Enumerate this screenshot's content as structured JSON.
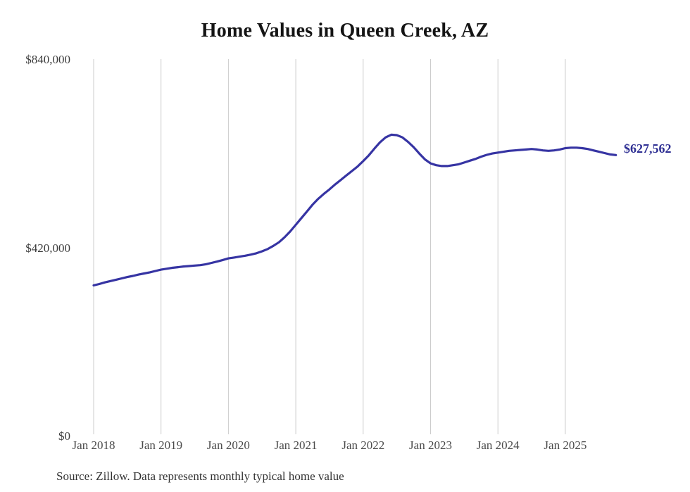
{
  "title": "Home Values in Queen Creek, AZ",
  "end_label": "$627,562",
  "source_note": "Source: Zillow. Data represents monthly typical home value",
  "colors": {
    "line": "#3634a3",
    "end_label": "#2e2f93",
    "grid": "#cccccc",
    "title": "#141414",
    "axis_text": "#4a4a4a"
  },
  "chart_data": {
    "type": "line",
    "title": "Home Values in Queen Creek, AZ",
    "xlabel": "",
    "ylabel": "",
    "ylim": [
      0,
      840000
    ],
    "grid": "vertical-only",
    "legend": "none",
    "x_unit": "month",
    "start_month": "2018-01",
    "end_month": "2025-10",
    "y_ticks": [
      {
        "label": "$840,000",
        "value": 840000
      },
      {
        "label": "$420,000",
        "value": 420000
      },
      {
        "label": "$0",
        "value": 0
      }
    ],
    "x_ticks": [
      {
        "label": "Jan 2018",
        "month_index": 0
      },
      {
        "label": "Jan 2019",
        "month_index": 12
      },
      {
        "label": "Jan 2020",
        "month_index": 24
      },
      {
        "label": "Jan 2021",
        "month_index": 36
      },
      {
        "label": "Jan 2022",
        "month_index": 48
      },
      {
        "label": "Jan 2023",
        "month_index": 60
      },
      {
        "label": "Jan 2024",
        "month_index": 72
      },
      {
        "label": "Jan 2025",
        "month_index": 84
      }
    ],
    "series": [
      {
        "name": "Monthly typical home value",
        "last_value": 627562,
        "values": [
          337000,
          340000,
          343500,
          346500,
          349500,
          352500,
          355500,
          358000,
          361000,
          363500,
          366000,
          369000,
          372000,
          374000,
          376000,
          377500,
          379000,
          380000,
          381000,
          382000,
          384000,
          387000,
          390000,
          393500,
          397000,
          399000,
          401000,
          403000,
          405500,
          408500,
          413000,
          418000,
          425000,
          433000,
          444000,
          457000,
          472000,
          487000,
          502000,
          517000,
          530000,
          541000,
          551000,
          562000,
          572000,
          582000,
          592000,
          602000,
          614000,
          627000,
          642000,
          656000,
          667000,
          673000,
          672000,
          667000,
          657000,
          645000,
          631000,
          618000,
          609000,
          605000,
          603000,
          603000,
          605000,
          607000,
          611000,
          615000,
          619000,
          624000,
          628000,
          631000,
          633000,
          635000,
          637000,
          638000,
          639000,
          640000,
          641000,
          640000,
          638000,
          637000,
          638000,
          640000,
          643000,
          644000,
          644000,
          643000,
          641000,
          638000,
          635000,
          632000,
          629000,
          627562
        ]
      }
    ]
  }
}
